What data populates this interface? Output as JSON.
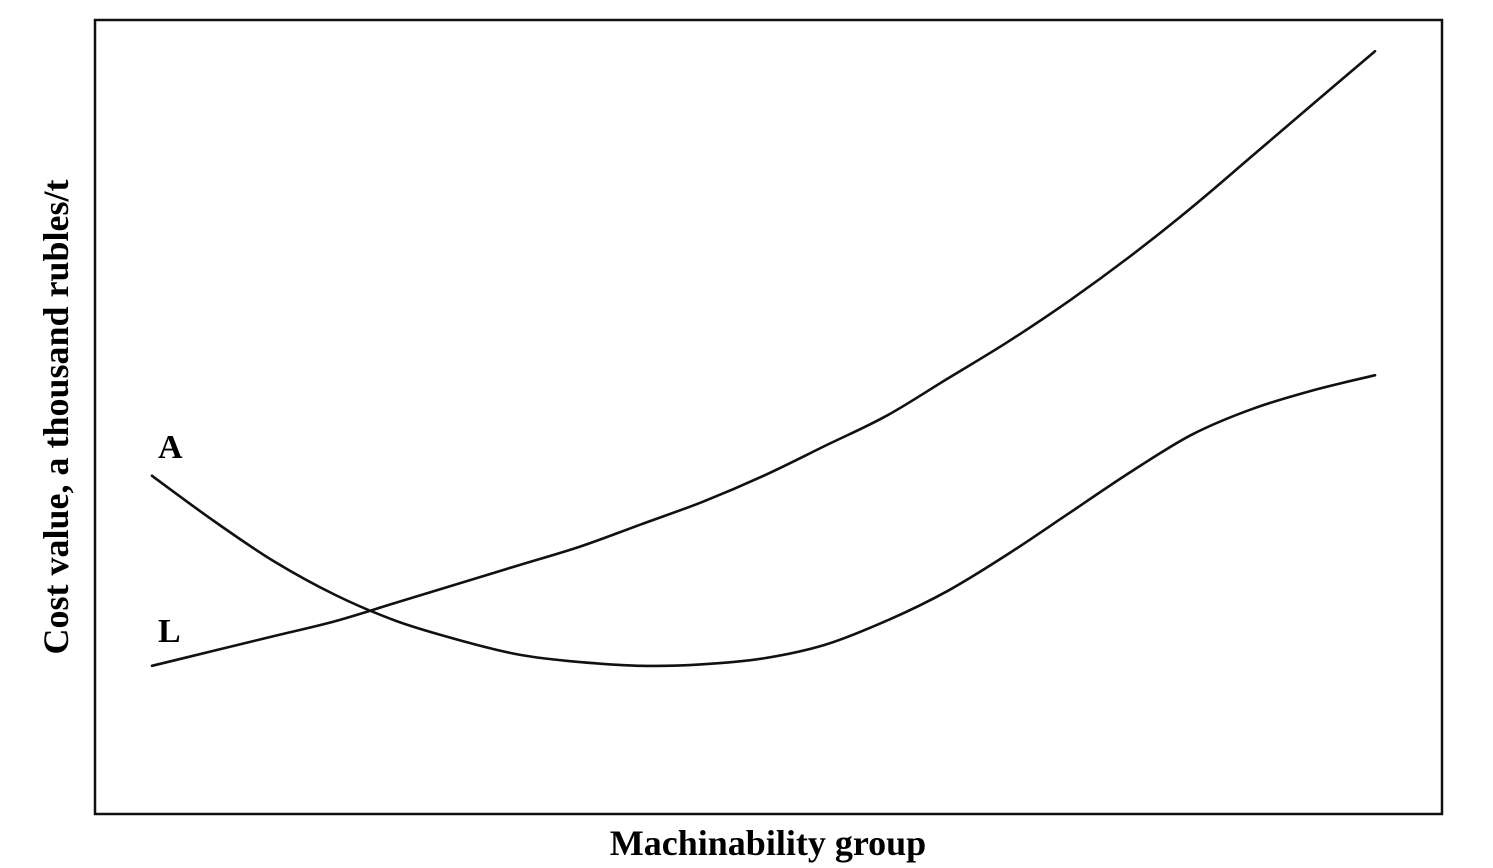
{
  "chart_data": {
    "type": "line",
    "title": "",
    "xlabel": "Machinability group",
    "ylabel": "Cost value, a thousand rubles/t",
    "xlim": [
      0,
      10
    ],
    "ylim": [
      0,
      10
    ],
    "grid": false,
    "legend": "none",
    "x_tick_labels": [],
    "y_tick_labels": [],
    "series": [
      {
        "name": "A",
        "color": "#111111",
        "x": [
          0,
          0.5,
          1,
          1.5,
          2,
          2.5,
          3,
          3.5,
          4,
          4.5,
          5,
          5.5,
          6,
          6.5,
          7,
          7.5,
          8,
          8.5,
          9,
          9.5,
          10
        ],
        "y": [
          4.15,
          3.55,
          3.0,
          2.55,
          2.2,
          1.95,
          1.75,
          1.65,
          1.6,
          1.62,
          1.7,
          1.88,
          2.2,
          2.6,
          3.1,
          3.65,
          4.2,
          4.7,
          5.05,
          5.3,
          5.5
        ]
      },
      {
        "name": "L",
        "color": "#111111",
        "x": [
          0,
          0.5,
          1,
          1.5,
          2,
          2.5,
          3,
          3.5,
          4,
          4.5,
          5,
          5.5,
          6,
          6.5,
          7,
          7.5,
          8,
          8.5,
          9,
          9.5,
          10
        ],
        "y": [
          1.6,
          1.8,
          2.0,
          2.2,
          2.45,
          2.7,
          2.95,
          3.2,
          3.5,
          3.8,
          4.15,
          4.55,
          4.95,
          5.45,
          5.95,
          6.5,
          7.1,
          7.75,
          8.45,
          9.15,
          9.85
        ]
      }
    ]
  }
}
